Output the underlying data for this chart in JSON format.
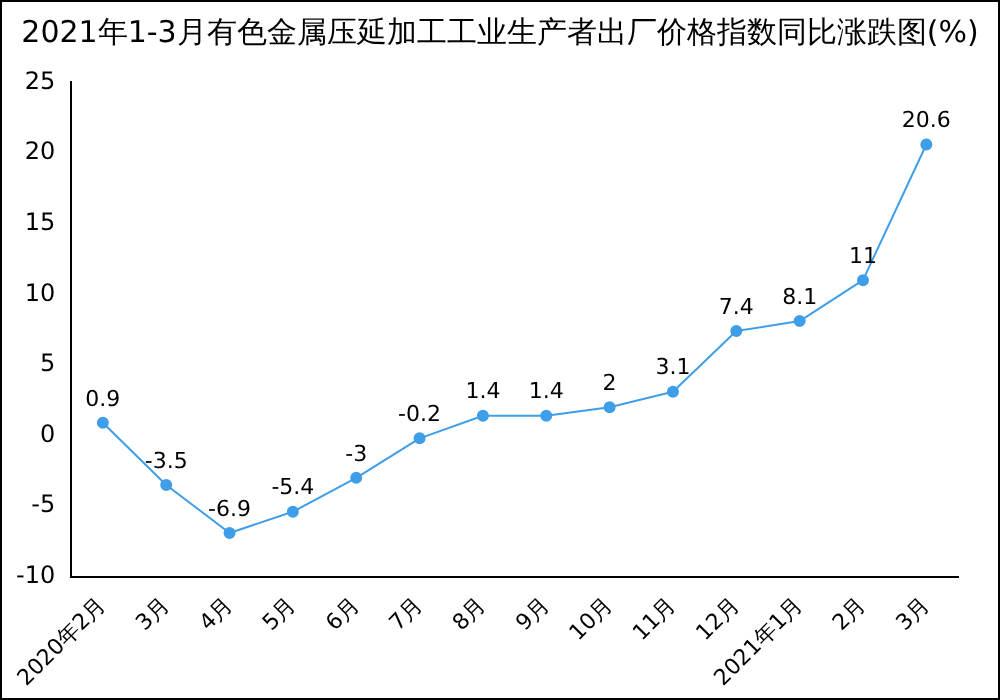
{
  "chart_data": {
    "type": "line",
    "title": "2021年1-3月有色金属压延加工工业生产者出厂价格指数同比涨跌图(%)",
    "categories": [
      "2020年2月",
      "3月",
      "4月",
      "5月",
      "6月",
      "7月",
      "8月",
      "9月",
      "10月",
      "11月",
      "12月",
      "2021年1月",
      "2月",
      "3月"
    ],
    "series": [
      {
        "color": "#3f9ee8",
        "values": [
          0.9,
          -3.5,
          -6.9,
          -5.4,
          -3,
          -0.2,
          1.4,
          1.4,
          2,
          3.1,
          7.4,
          8.1,
          11,
          20.6
        ]
      }
    ],
    "ylim": [
      -10,
      25
    ],
    "yticks": [
      -10,
      -5,
      0,
      5,
      10,
      15,
      20,
      25
    ],
    "grid": false,
    "legend": false,
    "marker": "circle",
    "data_labels": true
  }
}
